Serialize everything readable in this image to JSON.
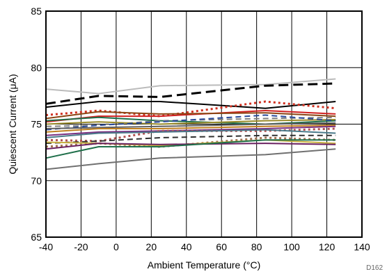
{
  "chart_data": {
    "type": "line",
    "xlabel": "Ambient Temperature (°C)",
    "ylabel": "Quiescent Current (μA)",
    "figure_code": "D162",
    "xlim": [
      -40,
      140
    ],
    "ylim": [
      65,
      85
    ],
    "xticks": [
      -40,
      -20,
      0,
      20,
      40,
      60,
      80,
      100,
      120,
      140
    ],
    "yticks": [
      65,
      70,
      75,
      80,
      85
    ],
    "grid": true,
    "x": [
      -40,
      -10,
      25,
      85,
      125
    ],
    "series": [
      {
        "color": "#bbbbbb",
        "style": "solid",
        "width": 2,
        "values": [
          78.1,
          77.7,
          78.4,
          78.5,
          79.0
        ]
      },
      {
        "color": "#000000",
        "style": "dashed",
        "width": 3,
        "values": [
          76.8,
          77.5,
          77.4,
          78.4,
          78.6
        ]
      },
      {
        "color": "#000000",
        "style": "solid",
        "width": 2,
        "values": [
          76.5,
          77.0,
          77.0,
          76.4,
          77.0
        ]
      },
      {
        "color": "#d03020",
        "style": "dotted",
        "width": 3,
        "values": [
          75.8,
          76.2,
          75.7,
          77.0,
          76.4
        ]
      },
      {
        "color": "#d02020",
        "style": "solid",
        "width": 2,
        "values": [
          75.2,
          75.7,
          75.7,
          76.2,
          75.9
        ]
      },
      {
        "color": "#8b4513",
        "style": "solid",
        "width": 2,
        "values": [
          75.5,
          76.1,
          75.9,
          76.0,
          75.7
        ]
      },
      {
        "color": "#1f6f4a",
        "style": "solid",
        "width": 2,
        "values": [
          75.3,
          75.6,
          75.3,
          75.0,
          75.3
        ]
      },
      {
        "color": "#808080",
        "style": "dashed",
        "width": 2,
        "values": [
          74.8,
          74.9,
          75.3,
          75.5,
          75.6
        ]
      },
      {
        "color": "#9a8b2a",
        "style": "solid",
        "width": 2,
        "values": [
          75.0,
          75.2,
          75.0,
          75.3,
          75.4
        ]
      },
      {
        "color": "#2a4a9a",
        "style": "dashed",
        "width": 2,
        "values": [
          74.5,
          74.9,
          75.2,
          75.8,
          75.3
        ]
      },
      {
        "color": "#606060",
        "style": "solid",
        "width": 2,
        "values": [
          74.6,
          74.7,
          74.8,
          75.0,
          75.1
        ]
      },
      {
        "color": "#c08020",
        "style": "solid",
        "width": 2,
        "values": [
          74.3,
          74.6,
          74.6,
          74.8,
          74.9
        ]
      },
      {
        "color": "#7a3080",
        "style": "solid",
        "width": 2,
        "values": [
          74.0,
          74.3,
          74.4,
          74.6,
          74.8
        ]
      },
      {
        "color": "#b05050",
        "style": "dotted",
        "width": 3,
        "values": [
          73.6,
          73.5,
          74.4,
          74.4,
          74.6
        ]
      },
      {
        "color": "#4a7a8a",
        "style": "solid",
        "width": 2,
        "values": [
          73.8,
          74.2,
          74.3,
          74.5,
          74.2
        ]
      },
      {
        "color": "#303030",
        "style": "dashed",
        "width": 2,
        "values": [
          73.3,
          73.5,
          73.8,
          74.0,
          74.0
        ]
      },
      {
        "color": "#a07050",
        "style": "dotted",
        "width": 3,
        "values": [
          73.0,
          73.3,
          73.0,
          73.8,
          73.6
        ]
      },
      {
        "color": "#c8b040",
        "style": "solid",
        "width": 2,
        "values": [
          73.4,
          73.3,
          73.1,
          73.6,
          73.3
        ]
      },
      {
        "color": "#6a2060",
        "style": "solid",
        "width": 2,
        "values": [
          72.8,
          73.3,
          73.2,
          73.3,
          73.2
        ]
      },
      {
        "color": "#1f6f4a",
        "style": "solid",
        "width": 2,
        "values": [
          72.0,
          73.0,
          73.0,
          73.6,
          73.6
        ]
      },
      {
        "color": "#707070",
        "style": "solid",
        "width": 2,
        "values": [
          71.0,
          71.5,
          72.0,
          72.3,
          72.8
        ]
      }
    ]
  }
}
